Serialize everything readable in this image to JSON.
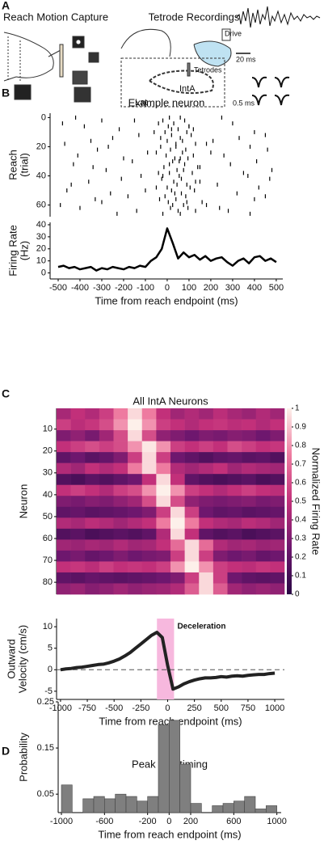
{
  "illustration": {
    "label": "A",
    "left_title": "Reach Motion Capture",
    "right_title": "Tetrode Recordings",
    "drive": "Drive",
    "tetrodes": "Tetrodes",
    "inta": "IntA",
    "lat": "Lat",
    "scale_time": "20 ms",
    "scale_wave": "0.5 ms"
  },
  "chart_data": [
    {
      "type": "raster",
      "label": "B",
      "title": "Example neuron",
      "ylabel": [
        "Reach",
        "(trial)"
      ],
      "xlim": [
        -537,
        530
      ],
      "ylim": [
        -3,
        68
      ],
      "y_inverted": true,
      "yticks": [
        0,
        20,
        40,
        60
      ],
      "color": "#000000",
      "trials": [
        0,
        2,
        4,
        6,
        8,
        10,
        12,
        14,
        16,
        18,
        20,
        22,
        24,
        26,
        28,
        30,
        32,
        34,
        36,
        38,
        40,
        42,
        44,
        46,
        48,
        50,
        52,
        54,
        56,
        58,
        60,
        62,
        64,
        66
      ],
      "spikes": [
        [
          -420,
          250,
          10,
          60
        ],
        [
          -150,
          -300,
          -20,
          80
        ],
        [
          300,
          -480,
          30,
          -40
        ],
        [
          -380,
          100,
          5,
          100
        ],
        [
          120,
          -220,
          50,
          20
        ],
        [
          -60,
          400,
          -10,
          90
        ],
        [
          450,
          -130,
          20,
          110
        ],
        [
          -250,
          330,
          60,
          -30
        ],
        [
          210,
          -350,
          0,
          70
        ],
        [
          -470,
          180,
          40,
          130
        ],
        [
          380,
          -270,
          -30,
          40
        ],
        [
          -320,
          460,
          15,
          85
        ],
        [
          -90,
          200,
          70,
          -50
        ],
        [
          260,
          -410,
          -5,
          120
        ],
        [
          -200,
          60,
          35,
          95
        ],
        [
          410,
          -160,
          25,
          55
        ],
        [
          -430,
          290,
          80,
          10
        ],
        [
          150,
          -340,
          -15,
          140
        ],
        [
          -280,
          480,
          45,
          75
        ],
        [
          350,
          -40,
          10,
          115
        ],
        [
          -120,
          370,
          55,
          -20
        ],
        [
          470,
          -210,
          -25,
          65
        ],
        [
          -360,
          130,
          30,
          150
        ],
        [
          230,
          -440,
          90,
          45
        ],
        [
          -50,
          420,
          0,
          105
        ],
        [
          -460,
          -100,
          20,
          125
        ],
        [
          320,
          -260,
          65,
          35
        ],
        [
          -180,
          450,
          -10,
          85
        ],
        [
          400,
          -330,
          40,
          -35
        ],
        [
          -300,
          90,
          5,
          160
        ],
        [
          180,
          -490,
          75,
          25
        ],
        [
          -400,
          240,
          15,
          95
        ],
        [
          280,
          -140,
          50,
          130
        ],
        [
          -230,
          380,
          -20,
          60
        ]
      ]
    },
    {
      "type": "line",
      "ylabel": [
        "Firing Rate",
        "(Hz)"
      ],
      "xlabel": "Time from reach endpoint (ms)",
      "xlim": [
        -537,
        530
      ],
      "ylim": [
        -5,
        42
      ],
      "xticks": [
        -500,
        -400,
        -300,
        -200,
        -100,
        0,
        100,
        200,
        300,
        400,
        500
      ],
      "yticks": [
        0,
        10,
        20,
        30,
        40
      ],
      "color": "#000000",
      "line_width": 2.5,
      "x": [
        -500,
        -475,
        -450,
        -425,
        -400,
        -375,
        -350,
        -325,
        -300,
        -275,
        -250,
        -225,
        -200,
        -175,
        -150,
        -125,
        -100,
        -75,
        -50,
        -25,
        0,
        25,
        50,
        75,
        100,
        125,
        150,
        175,
        200,
        225,
        250,
        275,
        300,
        325,
        350,
        375,
        400,
        425,
        450,
        475,
        500
      ],
      "values": [
        5,
        6,
        4,
        5,
        3,
        4,
        5,
        2,
        4,
        3,
        5,
        4,
        3,
        5,
        4,
        6,
        5,
        10,
        13,
        20,
        37,
        25,
        12,
        17,
        13,
        15,
        11,
        14,
        10,
        12,
        13,
        9,
        6,
        10,
        12,
        8,
        13,
        14,
        10,
        12,
        9
      ]
    },
    {
      "type": "heatmap",
      "label": "C",
      "title": "All IntA Neurons",
      "ylabel": "Neuron",
      "colorbar_label": "Normalized Firing Rate",
      "ylim": [
        0.5,
        85.5
      ],
      "y_inverted": true,
      "yticks": [
        10,
        20,
        30,
        40,
        50,
        60,
        70,
        80
      ],
      "clim": [
        0,
        1
      ],
      "cticks": [
        0,
        0.1,
        0.2,
        0.3,
        0.4,
        0.5,
        0.6,
        0.7,
        0.8,
        0.9,
        1
      ],
      "colormap": [
        "#2a0845",
        "#6e176e",
        "#c2307a",
        "#ee7ba0",
        "#fdf0ea"
      ],
      "values": [
        [
          0.42,
          0.5,
          0.45,
          0.55,
          0.75,
          0.95,
          0.75,
          0.5,
          0.4,
          0.45,
          0.4,
          0.48,
          0.42,
          0.38,
          0.45,
          0.4
        ],
        [
          0.55,
          0.48,
          0.52,
          0.6,
          0.8,
          1,
          0.8,
          0.55,
          0.5,
          0.45,
          0.5,
          0.52,
          0.48,
          0.5,
          0.45,
          0.5
        ],
        [
          0.3,
          0.35,
          0.28,
          0.4,
          0.6,
          0.95,
          0.6,
          0.35,
          0.3,
          0.25,
          0.3,
          0.28,
          0.32,
          0.3,
          0.25,
          0.3
        ],
        [
          0.5,
          0.55,
          0.6,
          0.55,
          0.6,
          0.8,
          0.98,
          0.8,
          0.55,
          0.5,
          0.55,
          0.5,
          0.6,
          0.55,
          0.5,
          0.52
        ],
        [
          0.2,
          0.25,
          0.18,
          0.22,
          0.3,
          0.55,
          0.95,
          0.55,
          0.25,
          0.2,
          0.15,
          0.2,
          0.22,
          0.18,
          0.2,
          0.15
        ],
        [
          0.45,
          0.4,
          0.5,
          0.45,
          0.5,
          0.75,
          0.95,
          0.75,
          0.45,
          0.4,
          0.45,
          0.5,
          0.4,
          0.45,
          0.42,
          0.4
        ],
        [
          0.15,
          0.12,
          0.18,
          0.15,
          0.2,
          0.25,
          0.5,
          0.95,
          0.5,
          0.2,
          0.15,
          0.12,
          0.15,
          0.18,
          0.12,
          0.15
        ],
        [
          0.5,
          0.55,
          0.5,
          0.45,
          0.55,
          0.6,
          0.8,
          1,
          0.8,
          0.55,
          0.5,
          0.45,
          0.5,
          0.55,
          0.5,
          0.48
        ],
        [
          0.3,
          0.28,
          0.32,
          0.3,
          0.35,
          0.4,
          0.6,
          0.95,
          0.6,
          0.35,
          0.3,
          0.28,
          0.3,
          0.32,
          0.28,
          0.3
        ],
        [
          0.2,
          0.22,
          0.18,
          0.2,
          0.22,
          0.25,
          0.3,
          0.55,
          0.95,
          0.55,
          0.25,
          0.2,
          0.22,
          0.18,
          0.2,
          0.22
        ],
        [
          0.45,
          0.42,
          0.48,
          0.45,
          0.4,
          0.45,
          0.5,
          0.75,
          1,
          0.75,
          0.5,
          0.45,
          0.42,
          0.48,
          0.45,
          0.4
        ],
        [
          0.15,
          0.18,
          0.12,
          0.15,
          0.18,
          0.15,
          0.2,
          0.45,
          0.95,
          0.5,
          0.2,
          0.15,
          0.18,
          0.12,
          0.15,
          0.18
        ],
        [
          0.4,
          0.38,
          0.42,
          0.4,
          0.45,
          0.4,
          0.42,
          0.5,
          0.7,
          0.95,
          0.7,
          0.45,
          0.4,
          0.42,
          0.38,
          0.4
        ],
        [
          0.25,
          0.28,
          0.22,
          0.25,
          0.3,
          0.25,
          0.28,
          0.3,
          0.55,
          0.95,
          0.55,
          0.3,
          0.25,
          0.28,
          0.22,
          0.25
        ],
        [
          0.5,
          0.52,
          0.48,
          0.55,
          0.5,
          0.52,
          0.5,
          0.55,
          0.8,
          1,
          0.8,
          0.55,
          0.5,
          0.48,
          0.52,
          0.5
        ],
        [
          0.2,
          0.18,
          0.22,
          0.2,
          0.18,
          0.2,
          0.22,
          0.25,
          0.3,
          0.55,
          0.95,
          0.55,
          0.25,
          0.2,
          0.18,
          0.2
        ],
        [
          0.35,
          0.38,
          0.32,
          0.35,
          0.4,
          0.35,
          0.38,
          0.4,
          0.45,
          0.65,
          0.95,
          0.65,
          0.4,
          0.35,
          0.38,
          0.35
        ]
      ]
    },
    {
      "type": "line",
      "ylabel": [
        "Outward",
        "Velocity (cm/s)"
      ],
      "xlabel": "Time from reach endpoint (ms)",
      "xlim": [
        -1037,
        1090
      ],
      "ylim": [
        -6.9,
        11.9
      ],
      "xticks": [
        -1000,
        -750,
        -500,
        -250,
        0,
        250,
        500,
        750,
        1000
      ],
      "yticks": [
        -5,
        0,
        5,
        10
      ],
      "color": "#222222",
      "line_width": 4,
      "hline": 0,
      "span": [
        -100,
        60
      ],
      "span_label": "Deceleration",
      "span_color": "#f7b8de",
      "span_text_color": "#d0208e",
      "x": [
        -1000,
        -950,
        -900,
        -850,
        -800,
        -750,
        -700,
        -650,
        -600,
        -550,
        -500,
        -450,
        -400,
        -350,
        -300,
        -250,
        -200,
        -150,
        -100,
        -50,
        0,
        50,
        100,
        150,
        200,
        250,
        300,
        350,
        400,
        450,
        500,
        550,
        600,
        650,
        700,
        750,
        800,
        850,
        900,
        950,
        1000
      ],
      "values": [
        0,
        0.2,
        0.3,
        0.5,
        0.6,
        0.8,
        1,
        1.2,
        1.3,
        1.6,
        2,
        2.5,
        3.2,
        4,
        5,
        6,
        7,
        8,
        8.7,
        7.5,
        1,
        -4.5,
        -4,
        -3.3,
        -2.8,
        -2.4,
        -2.1,
        -1.9,
        -1.9,
        -1.8,
        -1.6,
        -1.7,
        -1.5,
        -1.4,
        -1.5,
        -1.3,
        -1.2,
        -1.1,
        -1.1,
        -0.9,
        -0.8
      ]
    },
    {
      "type": "histogram",
      "label": "D",
      "title": "Peak rate timing",
      "ylabel": "Probability",
      "xlabel": "Time from reach endpoint (ms)",
      "xlim": [
        -1030,
        1040
      ],
      "ylim": [
        0.01,
        0.25
      ],
      "xticks": [
        -1000,
        -600,
        -200,
        0,
        200,
        600,
        1000
      ],
      "yticks": [
        0.05,
        0.15,
        0.25
      ],
      "color": "#7f7f7f",
      "bins": [
        -1000,
        -900,
        -800,
        -700,
        -600,
        -500,
        -400,
        -300,
        -200,
        -100,
        0,
        100,
        200,
        300,
        400,
        500,
        600,
        700,
        800,
        900,
        1000
      ],
      "values": [
        0.07,
        0,
        0.04,
        0.045,
        0.04,
        0.05,
        0.045,
        0.035,
        0.045,
        0.2,
        0.21,
        0.115,
        0.03,
        0,
        0.025,
        0.03,
        0.035,
        0.045,
        0.018,
        0.025
      ]
    }
  ]
}
